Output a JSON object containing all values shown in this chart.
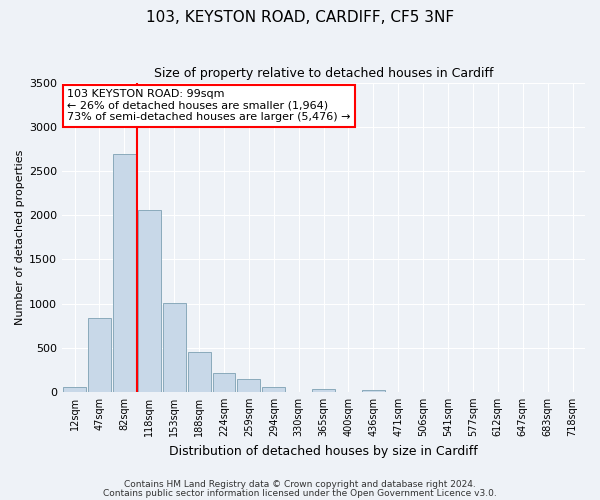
{
  "title": "103, KEYSTON ROAD, CARDIFF, CF5 3NF",
  "subtitle": "Size of property relative to detached houses in Cardiff",
  "xlabel": "Distribution of detached houses by size in Cardiff",
  "ylabel": "Number of detached properties",
  "footnote1": "Contains HM Land Registry data © Crown copyright and database right 2024.",
  "footnote2": "Contains public sector information licensed under the Open Government Licence v3.0.",
  "bar_labels": [
    "12sqm",
    "47sqm",
    "82sqm",
    "118sqm",
    "153sqm",
    "188sqm",
    "224sqm",
    "259sqm",
    "294sqm",
    "330sqm",
    "365sqm",
    "400sqm",
    "436sqm",
    "471sqm",
    "506sqm",
    "541sqm",
    "577sqm",
    "612sqm",
    "647sqm",
    "683sqm",
    "718sqm"
  ],
  "bar_values": [
    50,
    840,
    2700,
    2060,
    1010,
    450,
    210,
    145,
    55,
    0,
    30,
    0,
    20,
    0,
    0,
    0,
    0,
    0,
    0,
    0,
    0
  ],
  "bar_color": "#c8d8e8",
  "bar_edge_color": "#8aaabb",
  "vline_color": "red",
  "vline_x": 2.5,
  "ylim": [
    0,
    3500
  ],
  "yticks": [
    0,
    500,
    1000,
    1500,
    2000,
    2500,
    3000,
    3500
  ],
  "annotation_title": "103 KEYSTON ROAD: 99sqm",
  "annotation_line1": "← 26% of detached houses are smaller (1,964)",
  "annotation_line2": "73% of semi-detached houses are larger (5,476) →",
  "annotation_box_facecolor": "#ffffff",
  "annotation_box_edgecolor": "red",
  "bg_color": "#eef2f7",
  "grid_color": "#ffffff",
  "title_fontsize": 11,
  "subtitle_fontsize": 9,
  "ylabel_fontsize": 8,
  "xlabel_fontsize": 9,
  "tick_fontsize": 7,
  "annot_fontsize": 8,
  "footnote_fontsize": 6.5
}
